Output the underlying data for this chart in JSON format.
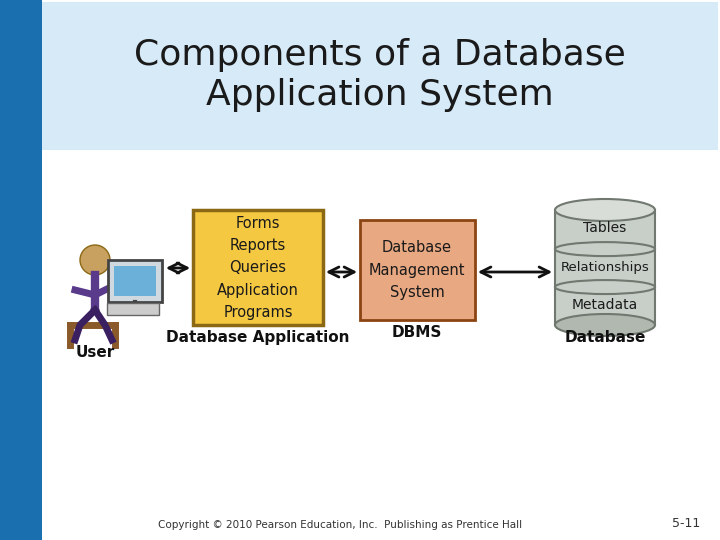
{
  "title": "Components of a Database\nApplication System",
  "title_bg": "#d6eaf8",
  "title_color": "#1a1a1a",
  "slide_bg": "#ffffff",
  "blue_bar_color": "#1a6faf",
  "copyright": "Copyright © 2010 Pearson Education, Inc.  Publishing as Prentice Hall",
  "slide_number": "5-11",
  "box1_text": "Forms\nReports\nQueries\nApplication\nPrograms",
  "box1_fill": "#f5c842",
  "box1_edge": "#8B6914",
  "box2_text": "Database\nManagement\nSystem",
  "box2_fill": "#e8a882",
  "box2_edge": "#8B4513",
  "label_user": "User",
  "label_db_app": "Database Application",
  "label_dbms": "DBMS",
  "label_database": "Database",
  "db_labels": [
    "Tables",
    "Relationships",
    "Metadata"
  ],
  "font_family": "DejaVu Sans"
}
